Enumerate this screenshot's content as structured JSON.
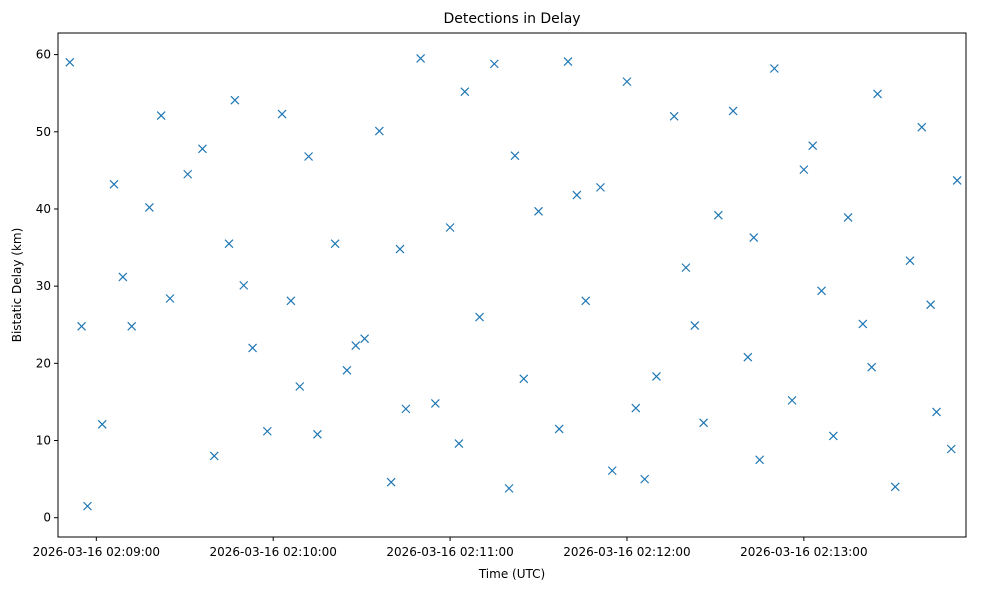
{
  "chart_data": {
    "type": "scatter",
    "title": "Detections in Delay",
    "xlabel": "Time (UTC)",
    "ylabel": "Bistatic Delay (km)",
    "x_tick_labels": [
      "2026-03-16 02:09:00",
      "2026-03-16 02:10:00",
      "2026-03-16 02:11:00",
      "2026-03-16 02:12:00",
      "2026-03-16 02:13:00"
    ],
    "x_ticks": [
      "2026-03-16 02:09:00",
      "2026-03-16 02:10:00",
      "2026-03-16 02:11:00",
      "2026-03-16 02:12:00",
      "2026-03-16 02:13:00"
    ],
    "y_ticks": [
      0,
      10,
      20,
      30,
      40,
      50,
      60
    ],
    "xlim": [
      "2026-03-16 02:08:47",
      "2026-03-16 02:13:55"
    ],
    "ylim": [
      -2.5,
      62.8
    ],
    "grid": false,
    "marker": "x",
    "color": "#1f77b4",
    "series": [
      {
        "x": [
          "2026-03-16 02:08:51",
          "2026-03-16 02:08:55",
          "2026-03-16 02:09:02",
          "2026-03-16 02:09:06",
          "2026-03-16 02:09:12",
          "2026-03-16 02:09:18",
          "2026-03-16 02:09:22",
          "2026-03-16 02:09:31",
          "2026-03-16 02:09:36",
          "2026-03-16 02:09:40",
          "2026-03-16 02:09:45",
          "2026-03-16 02:09:47",
          "2026-03-16 02:09:53",
          "2026-03-16 02:09:58",
          "2026-03-16 02:10:03",
          "2026-03-16 02:10:06",
          "2026-03-16 02:10:12",
          "2026-03-16 02:10:15",
          "2026-03-16 02:10:21",
          "2026-03-16 02:10:25",
          "2026-03-16 02:10:31",
          "2026-03-16 02:10:36",
          "2026-03-16 02:10:40",
          "2026-03-16 02:10:45",
          "2026-03-16 02:10:50",
          "2026-03-16 02:10:55",
          "2026-03-16 02:11:00",
          "2026-03-16 02:11:05",
          "2026-03-16 02:11:10",
          "2026-03-16 02:11:15",
          "2026-03-16 02:11:22",
          "2026-03-16 02:11:25",
          "2026-03-16 02:11:30",
          "2026-03-16 02:11:37",
          "2026-03-16 02:11:40",
          "2026-03-16 02:11:46",
          "2026-03-16 02:11:51",
          "2026-03-16 02:11:55",
          "2026-03-16 02:12:00",
          "2026-03-16 02:12:06",
          "2026-03-16 02:12:10",
          "2026-03-16 02:12:16",
          "2026-03-16 02:12:20",
          "2026-03-16 02:12:26",
          "2026-03-16 02:12:31",
          "2026-03-16 02:12:36",
          "2026-03-16 02:12:41",
          "2026-03-16 02:12:45",
          "2026-03-16 02:12:50",
          "2026-03-16 02:12:56",
          "2026-03-16 02:13:00",
          "2026-03-16 02:13:06",
          "2026-03-16 02:13:10",
          "2026-03-16 02:13:15",
          "2026-03-16 02:13:20",
          "2026-03-16 02:13:25",
          "2026-03-16 02:13:31",
          "2026-03-16 02:13:36",
          "2026-03-16 02:13:40",
          "2026-03-16 02:13:45",
          "2026-03-16 02:13:50",
          "2026-03-16 02:13:52",
          "2026-03-16 02:08:57",
          "2026-03-16 02:09:09",
          "2026-03-16 02:09:25",
          "2026-03-16 02:09:50",
          "2026-03-16 02:10:09",
          "2026-03-16 02:10:28",
          "2026-03-16 02:10:43",
          "2026-03-16 02:11:03",
          "2026-03-16 02:11:20",
          "2026-03-16 02:11:43",
          "2026-03-16 02:12:03",
          "2026-03-16 02:12:23",
          "2026-03-16 02:12:43",
          "2026-03-16 02:13:03",
          "2026-03-16 02:13:23",
          "2026-03-16 02:13:43"
        ],
        "y": [
          59.0,
          24.8,
          12.1,
          43.2,
          24.8,
          40.2,
          52.1,
          44.5,
          47.8,
          8.0,
          35.5,
          54.1,
          22.0,
          11.2,
          52.3,
          28.1,
          46.8,
          10.8,
          35.5,
          19.1,
          23.2,
          50.1,
          4.6,
          14.1,
          59.5,
          14.8,
          37.6,
          55.2,
          26.0,
          58.8,
          46.9,
          18.0,
          39.7,
          11.5,
          59.1,
          28.1,
          42.8,
          6.1,
          56.5,
          5.0,
          18.3,
          52.0,
          32.4,
          12.3,
          39.2,
          52.7,
          20.8,
          7.5,
          58.2,
          15.2,
          45.1,
          29.4,
          10.6,
          38.9,
          25.1,
          54.9,
          4.0,
          33.3,
          50.6,
          13.7,
          8.9,
          43.7,
          1.5,
          31.2,
          28.4,
          30.1,
          17.0,
          22.3,
          34.8,
          9.6,
          3.8,
          41.8,
          14.2,
          24.9,
          36.3,
          48.2,
          19.5,
          27.6
        ]
      }
    ]
  }
}
